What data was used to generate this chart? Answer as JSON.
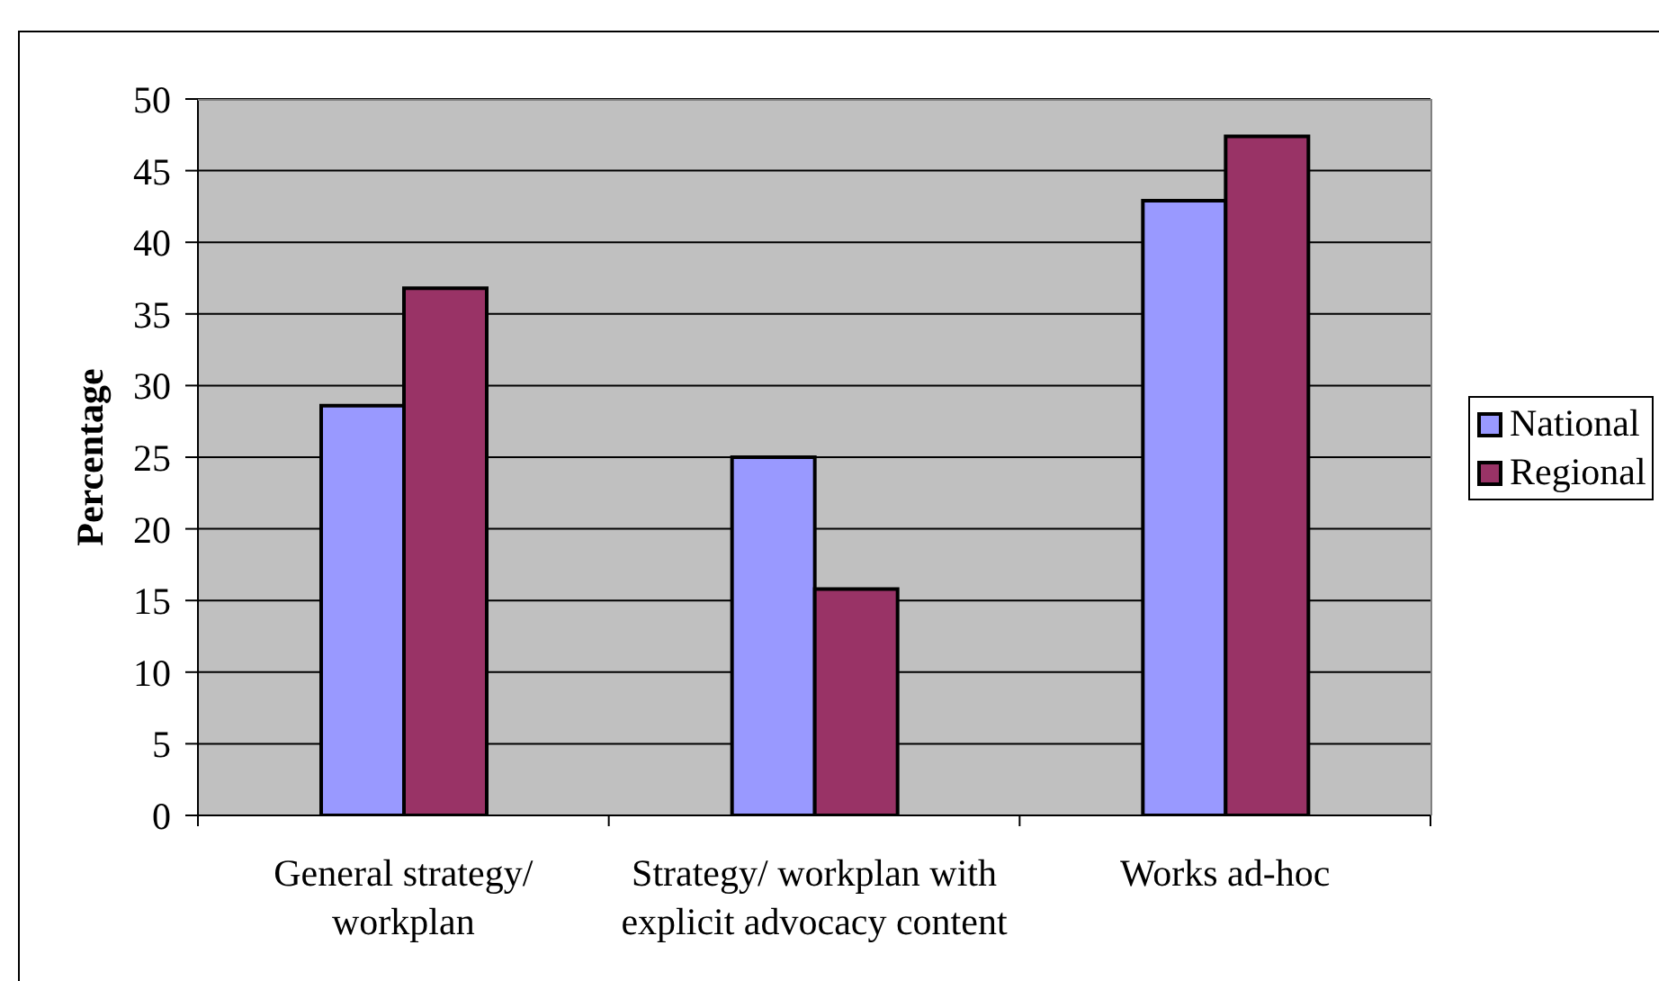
{
  "chart_data": {
    "type": "bar",
    "ylabel": "Percentage",
    "categories": [
      "General strategy/ workplan",
      "Strategy/ workplan with explicit advocacy content",
      "Works ad-hoc"
    ],
    "series": [
      {
        "name": "National",
        "color": "#9999ff",
        "values": [
          28.6,
          25,
          42.9
        ]
      },
      {
        "name": "Regional",
        "color": "#993366",
        "values": [
          36.8,
          15.8,
          47.4
        ]
      }
    ],
    "ylim": [
      0,
      50
    ],
    "yticks": [
      0,
      5,
      10,
      15,
      20,
      25,
      30,
      35,
      40,
      45,
      50
    ],
    "grid": "y",
    "legend": "right"
  }
}
